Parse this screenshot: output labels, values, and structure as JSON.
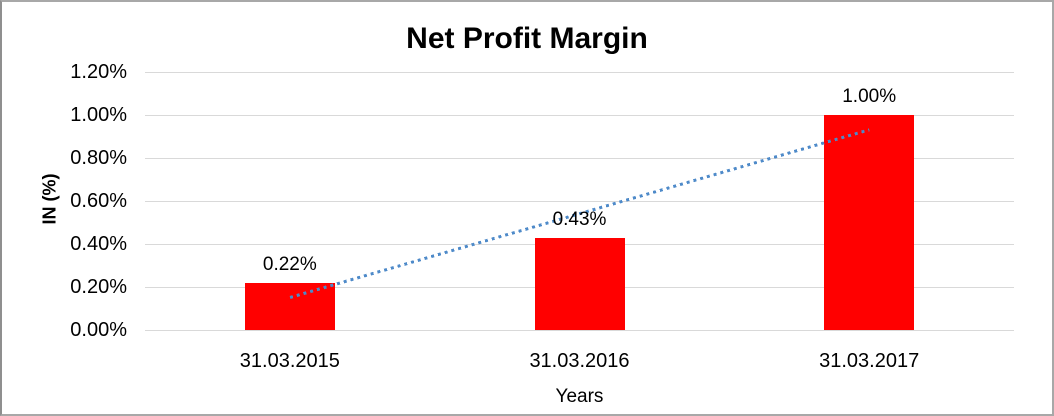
{
  "chart_data": {
    "type": "bar",
    "title": "Net Profit Margin",
    "xlabel": "Years",
    "ylabel": "IN (%)",
    "categories": [
      "31.03.2015",
      "31.03.2016",
      "31.03.2017"
    ],
    "values": [
      0.22,
      0.43,
      1.0
    ],
    "data_labels": [
      "0.22%",
      "0.43%",
      "1.00%"
    ],
    "ylim": [
      0,
      1.2
    ],
    "ytick_values": [
      0,
      0.2,
      0.4,
      0.6,
      0.8,
      1.0,
      1.2
    ],
    "ytick_labels": [
      "0.00%",
      "0.20%",
      "0.40%",
      "0.60%",
      "0.80%",
      "1.00%",
      "1.20%"
    ],
    "grid": true,
    "legend": "none",
    "bar_color": "#ff0000",
    "gridline_color": "#d9d9d9",
    "trendline": {
      "type": "linear",
      "style": "dotted",
      "color": "#4e8ac9",
      "start_value": 0.15,
      "end_value": 0.93
    }
  }
}
